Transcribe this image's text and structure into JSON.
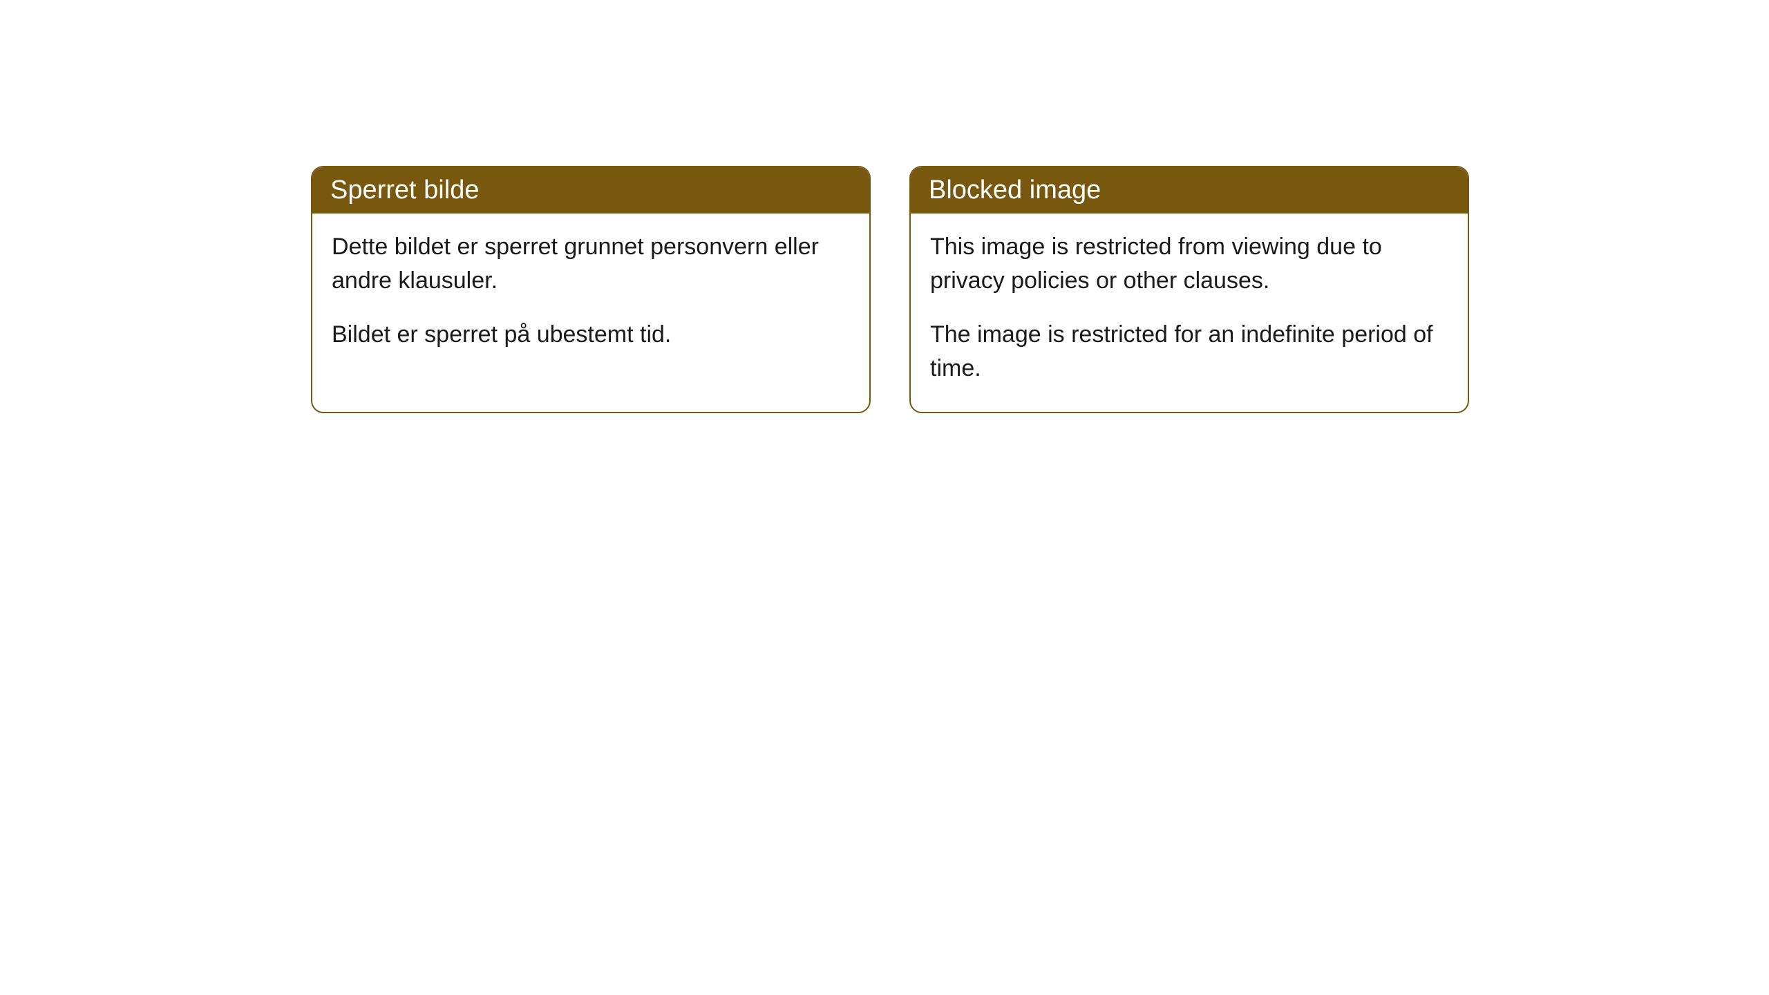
{
  "cards": [
    {
      "title": "Sperret bilde",
      "paragraph1": "Dette bildet er sperret grunnet personvern eller andre klausuler.",
      "paragraph2": "Bildet er sperret på ubestemt tid."
    },
    {
      "title": "Blocked image",
      "paragraph1": "This image is restricted from viewing due to privacy policies or other clauses.",
      "paragraph2": "The image is restricted for an indefinite period of time."
    }
  ],
  "styling": {
    "header_background": "#78570e",
    "header_text_color": "#ffffff",
    "border_color": "#78570e",
    "body_background": "#ffffff",
    "body_text_color": "#1a1a1a",
    "border_radius": 18,
    "title_fontsize": 38,
    "body_fontsize": 34
  }
}
